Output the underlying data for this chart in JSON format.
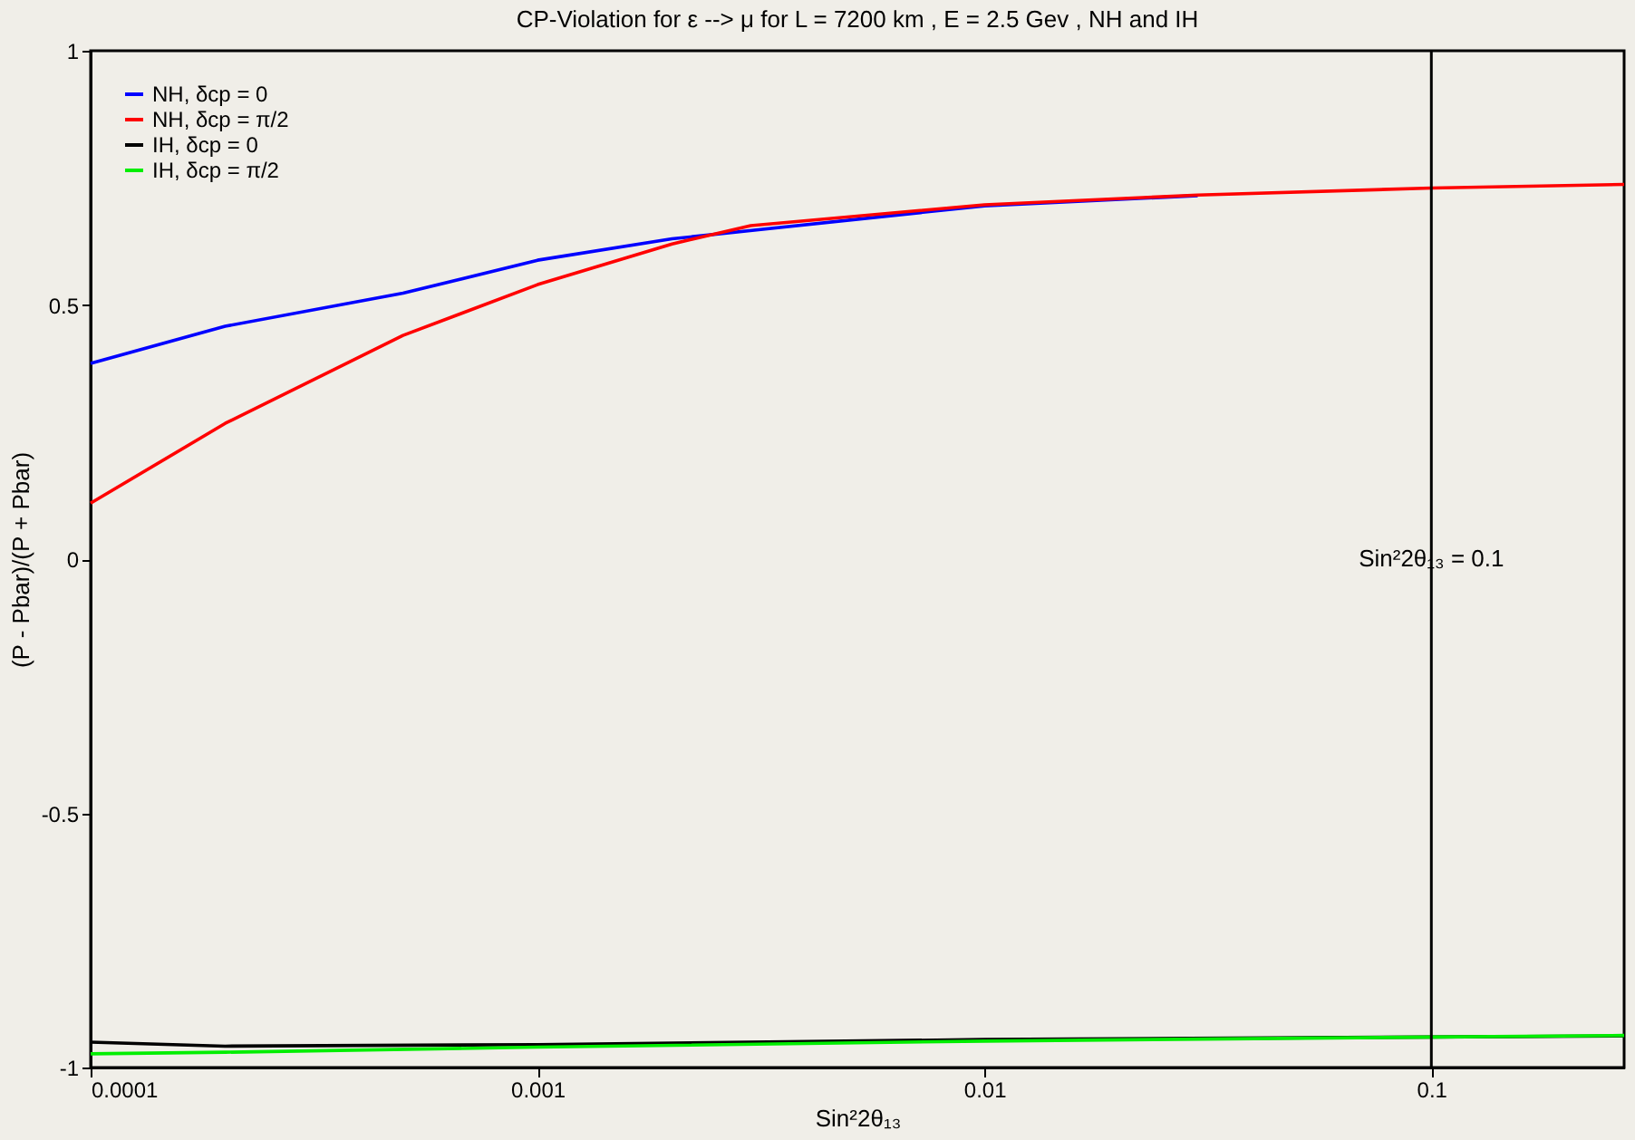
{
  "chart_data": {
    "type": "line",
    "title": "CP-Violation for ε --> μ for  L = 7200 km , E = 2.5 Gev , NH and IH",
    "xlabel": "Sin²2θ₁₃",
    "ylabel": "(P - Pbar)/(P + Pbar)",
    "log": "x",
    "grid": false,
    "legend": "top left",
    "marker": "none",
    "line_style": "solid",
    "xlim": [
      0.0001,
      0.27
    ],
    "xticks": [
      0.0001,
      0.001,
      0.01,
      0.1
    ],
    "ylim": [
      -1,
      1
    ],
    "yticks": [
      -1,
      -0.5,
      0,
      0.5,
      1
    ],
    "ref_lines": [
      {
        "axis": "x",
        "value": 0.1,
        "label": "Sin²2θ₁₃ = 0.1",
        "color": "#000000"
      }
    ],
    "series": [
      {
        "name": "NH, δcp = 0",
        "color": "#0000ff",
        "x": [
          0.0001,
          0.0002,
          0.0005,
          0.001,
          0.002,
          0.01,
          0.03
        ],
        "values": [
          0.385,
          0.458,
          0.523,
          0.588,
          0.63,
          0.695,
          0.715
        ]
      },
      {
        "name": "NH, δcp = π/2",
        "color": "#ff0000",
        "x": [
          0.0001,
          0.0002,
          0.0005,
          0.001,
          0.002,
          0.003,
          0.01,
          0.03,
          0.1,
          0.27
        ],
        "values": [
          0.11,
          0.267,
          0.44,
          0.54,
          0.62,
          0.656,
          0.697,
          0.716,
          0.73,
          0.737
        ]
      },
      {
        "name": "IH, δcp = 0",
        "color": "#000000",
        "x": [
          0.0001,
          0.0002,
          0.001,
          0.01,
          0.1,
          0.27
        ],
        "values": [
          -0.95,
          -0.958,
          -0.955,
          -0.945,
          -0.94,
          -0.938
        ]
      },
      {
        "name": "IH, δcp = π/2",
        "color": "#00ee00",
        "x": [
          0.0001,
          0.0002,
          0.001,
          0.01,
          0.1,
          0.27
        ],
        "values": [
          -0.973,
          -0.97,
          -0.96,
          -0.948,
          -0.94,
          -0.937
        ]
      }
    ]
  }
}
